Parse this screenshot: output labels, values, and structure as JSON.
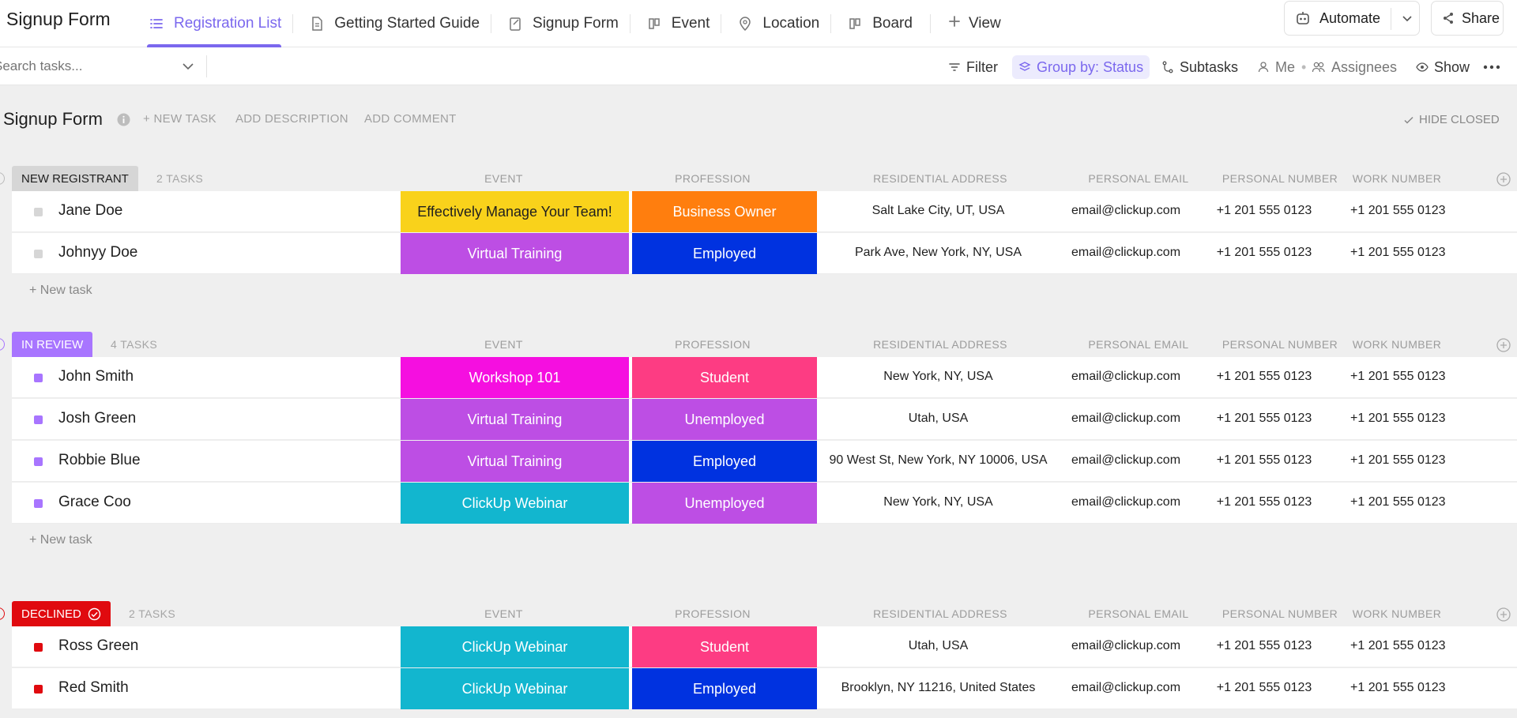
{
  "header": {
    "title": "Signup Form",
    "tabs": [
      {
        "label": "Registration List",
        "icon": "list-icon",
        "active": true
      },
      {
        "label": "Getting Started Guide",
        "icon": "doc-icon",
        "active": false
      },
      {
        "label": "Signup Form",
        "icon": "form-icon",
        "active": false
      },
      {
        "label": "Event",
        "icon": "board-icon",
        "active": false
      },
      {
        "label": "Location",
        "icon": "map-pin-icon",
        "active": false
      },
      {
        "label": "Board",
        "icon": "board-icon",
        "active": false
      }
    ],
    "add_view": "View",
    "automate": "Automate",
    "share": "Share"
  },
  "toolbar": {
    "search_placeholder": "Search tasks...",
    "filter": "Filter",
    "group_by": "Group by: Status",
    "subtasks": "Subtasks",
    "me": "Me",
    "assignees": "Assignees",
    "show": "Show"
  },
  "list": {
    "title": "Signup Form",
    "new_task_action": "+ NEW TASK",
    "add_description": "ADD DESCRIPTION",
    "add_comment": "ADD COMMENT",
    "hide_closed": "HIDE CLOSED"
  },
  "columns": {
    "event": "EVENT",
    "profession": "PROFESSION",
    "address": "RESIDENTIAL ADDRESS",
    "email": "PERSONAL EMAIL",
    "pnum": "PERSONAL NUMBER",
    "wnum": "WORK NUMBER"
  },
  "groups": [
    {
      "status": "NEW REGISTRANT",
      "count": "2 TASKS",
      "pill_bg": "#d6d6d6",
      "pill_fg": "#1f1f1f",
      "square": "#d6d6d6",
      "new_task": "+ New task",
      "tasks": [
        {
          "name": "Jane Doe",
          "event": "Effectively Manage Your Team!",
          "event_bg": "#f9d21b",
          "event_fg": "#1f1f1f",
          "profession": "Business Owner",
          "prof_bg": "#ff7e0e",
          "address": "Salt Lake City, UT, USA",
          "email": "email@clickup.com",
          "pnum": "+1 201 555 0123",
          "wnum": "+1 201 555 0123"
        },
        {
          "name": "Johnyy Doe",
          "event": "Virtual Training",
          "event_bg": "#bd4ee4",
          "event_fg": "#ffffff",
          "profession": "Employed",
          "prof_bg": "#0032e0",
          "address": "Park Ave, New York, NY, USA",
          "email": "email@clickup.com",
          "pnum": "+1 201 555 0123",
          "wnum": "+1 201 555 0123"
        }
      ]
    },
    {
      "status": "IN REVIEW",
      "count": "4 TASKS",
      "pill_bg": "#a875ff",
      "pill_fg": "#ffffff",
      "square": "#a875ff",
      "new_task": "+ New task",
      "tasks": [
        {
          "name": "John Smith",
          "event": "Workshop 101",
          "event_bg": "#f50fe0",
          "event_fg": "#ffffff",
          "profession": "Student",
          "prof_bg": "#fd3c83",
          "address": "New York, NY, USA",
          "email": "email@clickup.com",
          "pnum": "+1 201 555 0123",
          "wnum": "+1 201 555 0123"
        },
        {
          "name": "Josh Green",
          "event": "Virtual Training",
          "event_bg": "#bd4ee4",
          "event_fg": "#ffffff",
          "profession": "Unemployed",
          "prof_bg": "#bd4ee4",
          "address": "Utah, USA",
          "email": "email@clickup.com",
          "pnum": "+1 201 555 0123",
          "wnum": "+1 201 555 0123"
        },
        {
          "name": "Robbie Blue",
          "event": "Virtual Training",
          "event_bg": "#bd4ee4",
          "event_fg": "#ffffff",
          "profession": "Employed",
          "prof_bg": "#0032e0",
          "address": "90 West St, New York, NY 10006, USA",
          "email": "email@clickup.com",
          "pnum": "+1 201 555 0123",
          "wnum": "+1 201 555 0123"
        },
        {
          "name": "Grace Coo",
          "event": "ClickUp Webinar",
          "event_bg": "#12b6cf",
          "event_fg": "#ffffff",
          "profession": "Unemployed",
          "prof_bg": "#bd4ee4",
          "address": "New York, NY, USA",
          "email": "email@clickup.com",
          "pnum": "+1 201 555 0123",
          "wnum": "+1 201 555 0123"
        }
      ]
    },
    {
      "status": "DECLINED",
      "count": "2 TASKS",
      "pill_bg": "#e00a0f",
      "pill_fg": "#ffffff",
      "square": "#e00a0f",
      "new_task": "",
      "tasks": [
        {
          "name": "Ross Green",
          "event": "ClickUp Webinar",
          "event_bg": "#12b6cf",
          "event_fg": "#ffffff",
          "profession": "Student",
          "prof_bg": "#fd3c83",
          "address": "Utah, USA",
          "email": "email@clickup.com",
          "pnum": "+1 201 555 0123",
          "wnum": "+1 201 555 0123"
        },
        {
          "name": "Red Smith",
          "event": "ClickUp Webinar",
          "event_bg": "#12b6cf",
          "event_fg": "#ffffff",
          "profession": "Employed",
          "prof_bg": "#0032e0",
          "address": "Brooklyn, NY 11216, United States",
          "email": "email@clickup.com",
          "pnum": "+1 201 555 0123",
          "wnum": "+1 201 555 0123"
        }
      ]
    }
  ],
  "accent": "#7b68ee"
}
